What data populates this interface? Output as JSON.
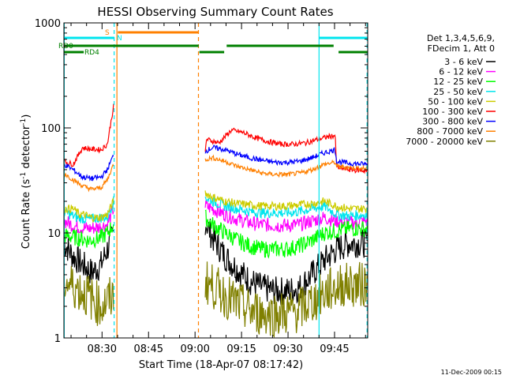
{
  "chart_data": {
    "type": "line",
    "title": "HESSI Observing Summary Count Rates",
    "xlabel": "Start Time (18-Apr-07 08:17:42)",
    "ylabel_main": "Count Rate (s",
    "ylabel_sup1": "-1",
    "ylabel_mid": " detector",
    "ylabel_sup2": "-1",
    "ylabel_end": ")",
    "x_start_label": "08:17:42",
    "xlim_minutes": [
      0,
      98
    ],
    "x_ticks": [
      "08:30",
      "08:45",
      "09:00",
      "09:15",
      "09:30",
      "09:45"
    ],
    "x_tick_minutes": [
      12.3,
      27.3,
      42.3,
      57.3,
      72.3,
      87.3
    ],
    "y_scale": "log",
    "ylim": [
      1,
      1000
    ],
    "y_ticks": [
      "1",
      "10",
      "100",
      "1000"
    ],
    "y_tick_values": [
      1,
      10,
      100,
      1000
    ],
    "footer": "11-Dec-2009 00:15",
    "legend": {
      "header": [
        "Det 1,3,4,5,6,9,",
        "FDecim 1, Att 0"
      ],
      "placement": "right"
    },
    "segments": [
      [
        0,
        16.5
      ],
      [
        45.6,
        98
      ]
    ],
    "flag_lines": [
      {
        "label": "SAA",
        "display": "S",
        "color": "#ff8000",
        "intervals": [
          [
            17.4,
            43.5
          ]
        ]
      },
      {
        "label": "Night",
        "display": "N",
        "color": "#00e5ee",
        "intervals": [
          [
            0,
            16.3
          ],
          [
            82.3,
            98
          ]
        ]
      },
      {
        "label": "RD0",
        "display": "RD0",
        "color": "#008000",
        "intervals": [
          [
            0,
            43.5
          ],
          [
            52.5,
            87
          ]
        ]
      },
      {
        "label": "RD4",
        "display": "RD4",
        "color": "#008000",
        "intervals": [
          [
            0,
            6.4
          ],
          [
            43.7,
            51.7
          ],
          [
            88.6,
            98
          ]
        ]
      }
    ],
    "vlines": [
      {
        "minute": 0.1,
        "color": "#00e5ee",
        "dash": false
      },
      {
        "minute": 16.2,
        "color": "#00e5ee",
        "dash": true
      },
      {
        "minute": 17.1,
        "color": "#ff8000",
        "dash": false
      },
      {
        "minute": 43.4,
        "color": "#ff8000",
        "dash": true
      },
      {
        "minute": 82.3,
        "color": "#00e5ee",
        "dash": false
      },
      {
        "minute": 97.8,
        "color": "#00e5ee",
        "dash": true
      }
    ],
    "series": [
      {
        "name": "3 - 6 keV",
        "color": "#000000",
        "seg1": [
          [
            0,
            8
          ],
          [
            3,
            6
          ],
          [
            6,
            5
          ],
          [
            9,
            4.2
          ],
          [
            12,
            5
          ],
          [
            14,
            7
          ],
          [
            16,
            10
          ]
        ],
        "seg2": [
          [
            45.6,
            13
          ],
          [
            48,
            9
          ],
          [
            52,
            6
          ],
          [
            56,
            4.5
          ],
          [
            60,
            3.5
          ],
          [
            64,
            3
          ],
          [
            68,
            2.8
          ],
          [
            72,
            2.8
          ],
          [
            76,
            3
          ],
          [
            80,
            4
          ],
          [
            84,
            5.5
          ],
          [
            88,
            7
          ],
          [
            92,
            8
          ],
          [
            98,
            8
          ]
        ],
        "noise": 0.14
      },
      {
        "name": "6 - 12 keV",
        "color": "#ff00ff",
        "seg1": [
          [
            0,
            13
          ],
          [
            4,
            11.5
          ],
          [
            8,
            11
          ],
          [
            12,
            11.5
          ],
          [
            14,
            12
          ],
          [
            16,
            17
          ]
        ],
        "seg2": [
          [
            45.6,
            18
          ],
          [
            48,
            17
          ],
          [
            52,
            15
          ],
          [
            56,
            13.5
          ],
          [
            60,
            12.5
          ],
          [
            64,
            12
          ],
          [
            68,
            11.8
          ],
          [
            72,
            11.8
          ],
          [
            76,
            12
          ],
          [
            80,
            13
          ],
          [
            84,
            14
          ],
          [
            88,
            13
          ],
          [
            92,
            12.5
          ],
          [
            98,
            13
          ]
        ],
        "noise": 0.07
      },
      {
        "name": "12 - 25 keV",
        "color": "#00ff00",
        "seg1": [
          [
            0,
            9.5
          ],
          [
            4,
            9
          ],
          [
            8,
            8.5
          ],
          [
            12,
            9
          ],
          [
            14,
            10
          ],
          [
            16,
            12
          ]
        ],
        "seg2": [
          [
            45.6,
            14
          ],
          [
            48,
            12
          ],
          [
            52,
            10
          ],
          [
            56,
            8.5
          ],
          [
            60,
            7.5
          ],
          [
            64,
            7
          ],
          [
            68,
            7
          ],
          [
            72,
            7
          ],
          [
            76,
            7.5
          ],
          [
            80,
            8.5
          ],
          [
            84,
            10
          ],
          [
            88,
            10.5
          ],
          [
            92,
            11
          ],
          [
            98,
            11
          ]
        ],
        "noise": 0.08
      },
      {
        "name": "25 - 50 keV",
        "color": "#00e5ee",
        "seg1": [
          [
            0,
            16
          ],
          [
            4,
            14
          ],
          [
            8,
            13.5
          ],
          [
            12,
            14
          ],
          [
            14,
            14
          ],
          [
            16,
            20
          ]
        ],
        "seg2": [
          [
            45.6,
            22
          ],
          [
            48,
            20
          ],
          [
            52,
            18
          ],
          [
            56,
            17
          ],
          [
            60,
            16
          ],
          [
            64,
            15.5
          ],
          [
            68,
            15.5
          ],
          [
            72,
            15.5
          ],
          [
            76,
            16
          ],
          [
            80,
            17
          ],
          [
            84,
            18
          ],
          [
            88,
            15
          ],
          [
            92,
            14.5
          ],
          [
            98,
            15
          ]
        ],
        "noise": 0.05
      },
      {
        "name": "50 - 100 keV",
        "color": "#cccc00",
        "seg1": [
          [
            0,
            17
          ],
          [
            3,
            17
          ],
          [
            5,
            15
          ],
          [
            6,
            15
          ],
          [
            9,
            14
          ],
          [
            12,
            14
          ],
          [
            14,
            15
          ],
          [
            16,
            20
          ]
        ],
        "seg2": [
          [
            45.6,
            24
          ],
          [
            48,
            22
          ],
          [
            52,
            20
          ],
          [
            56,
            19
          ],
          [
            60,
            18.5
          ],
          [
            64,
            18
          ],
          [
            68,
            18
          ],
          [
            72,
            18
          ],
          [
            76,
            18.5
          ],
          [
            80,
            19
          ],
          [
            84,
            20
          ],
          [
            88,
            18
          ],
          [
            92,
            17
          ],
          [
            98,
            17
          ]
        ],
        "noise": 0.04
      },
      {
        "name": "100 - 300 keV",
        "color": "#ff0000",
        "seg1": [
          [
            0,
            48
          ],
          [
            3,
            45
          ],
          [
            6,
            65
          ],
          [
            8,
            63
          ],
          [
            12,
            62
          ],
          [
            14,
            70
          ],
          [
            16,
            160
          ]
        ],
        "seg2": [
          [
            45.6,
            58
          ],
          [
            46,
            78
          ],
          [
            50,
            72
          ],
          [
            54,
            95
          ],
          [
            58,
            90
          ],
          [
            62,
            80
          ],
          [
            66,
            74
          ],
          [
            70,
            70
          ],
          [
            74,
            70
          ],
          [
            78,
            72
          ],
          [
            82,
            78
          ],
          [
            85,
            82
          ],
          [
            87.5,
            85
          ],
          [
            88,
            42
          ],
          [
            92,
            40
          ],
          [
            98,
            39
          ]
        ],
        "noise": 0.025
      },
      {
        "name": "300 - 800 keV",
        "color": "#0000ff",
        "seg1": [
          [
            0,
            45
          ],
          [
            3,
            40
          ],
          [
            6,
            34
          ],
          [
            9,
            33
          ],
          [
            12,
            34
          ],
          [
            14,
            40
          ],
          [
            16,
            55
          ]
        ],
        "seg2": [
          [
            45.6,
            60
          ],
          [
            48,
            65
          ],
          [
            52,
            62
          ],
          [
            56,
            56
          ],
          [
            60,
            52
          ],
          [
            64,
            49
          ],
          [
            68,
            47
          ],
          [
            72,
            47
          ],
          [
            76,
            48
          ],
          [
            80,
            52
          ],
          [
            84,
            58
          ],
          [
            87.5,
            62
          ],
          [
            88,
            48
          ],
          [
            92,
            46
          ],
          [
            98,
            45
          ]
        ],
        "noise": 0.025
      },
      {
        "name": "800 - 7000 keV",
        "color": "#ff8000",
        "seg1": [
          [
            0,
            37
          ],
          [
            3,
            32
          ],
          [
            6,
            28
          ],
          [
            9,
            26
          ],
          [
            12,
            27
          ],
          [
            14,
            32
          ],
          [
            16,
            45
          ]
        ],
        "seg2": [
          [
            45.6,
            50
          ],
          [
            48,
            52
          ],
          [
            52,
            48
          ],
          [
            56,
            43
          ],
          [
            60,
            40
          ],
          [
            64,
            37
          ],
          [
            68,
            36
          ],
          [
            72,
            36
          ],
          [
            76,
            37
          ],
          [
            80,
            40
          ],
          [
            84,
            45
          ],
          [
            87.5,
            47
          ],
          [
            88,
            43
          ],
          [
            92,
            42
          ],
          [
            98,
            41
          ]
        ],
        "noise": 0.022
      },
      {
        "name": "7000 - 20000 keV",
        "color": "#808000",
        "seg1": [
          [
            0,
            3.5
          ],
          [
            4,
            3
          ],
          [
            8,
            2.5
          ],
          [
            12,
            2
          ],
          [
            16,
            2.5
          ]
        ],
        "seg2": [
          [
            45.6,
            3.5
          ],
          [
            50,
            2.8
          ],
          [
            55,
            2.2
          ],
          [
            60,
            1.8
          ],
          [
            65,
            1.7
          ],
          [
            70,
            1.7
          ],
          [
            75,
            1.8
          ],
          [
            80,
            2.2
          ],
          [
            85,
            2.8
          ],
          [
            90,
            3.2
          ],
          [
            98,
            3.2
          ]
        ],
        "noise": 0.22
      }
    ]
  }
}
